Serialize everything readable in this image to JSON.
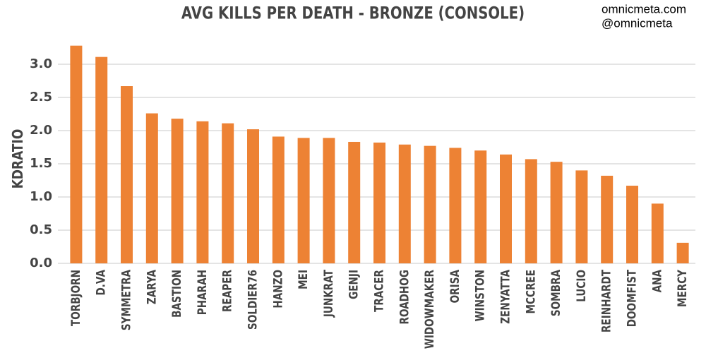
{
  "chart_data": {
    "type": "bar",
    "title": "AVG KILLS PER DEATH - BRONZE (CONSOLE)",
    "watermark": [
      "omnicmeta.com",
      "@omnicmeta"
    ],
    "y_label": "KDRATIO",
    "categories": [
      "TORBJORN",
      "D.VA",
      "SYMMETRA",
      "ZARYA",
      "BASTION",
      "PHARAH",
      "REAPER",
      "SOLDIER76",
      "HANZO",
      "MEI",
      "JUNKRAT",
      "GENJI",
      "TRACER",
      "ROADHOG",
      "WIDOWMAKER",
      "ORISA",
      "WINSTON",
      "ZENYATTA",
      "MCCREE",
      "SOMBRA",
      "LUCIO",
      "REINHARDT",
      "DOOMFIST",
      "ANA",
      "MERCY"
    ],
    "values": [
      3.28,
      3.11,
      2.67,
      2.26,
      2.18,
      2.14,
      2.11,
      2.02,
      1.91,
      1.89,
      1.89,
      1.83,
      1.82,
      1.79,
      1.77,
      1.74,
      1.7,
      1.64,
      1.57,
      1.53,
      1.4,
      1.32,
      1.17,
      0.9,
      0.31
    ],
    "color": "#ed8234",
    "ylim": [
      0,
      3.4
    ],
    "yticks": [
      {
        "value": 0,
        "label": "0.0"
      },
      {
        "value": 0.5,
        "label": "0.5"
      },
      {
        "value": 1,
        "label": "1.0"
      },
      1.5,
      {
        "value": 2,
        "label": "2.0"
      },
      2.5,
      {
        "value": 3,
        "label": "3.0"
      }
    ],
    "grid": true
  }
}
